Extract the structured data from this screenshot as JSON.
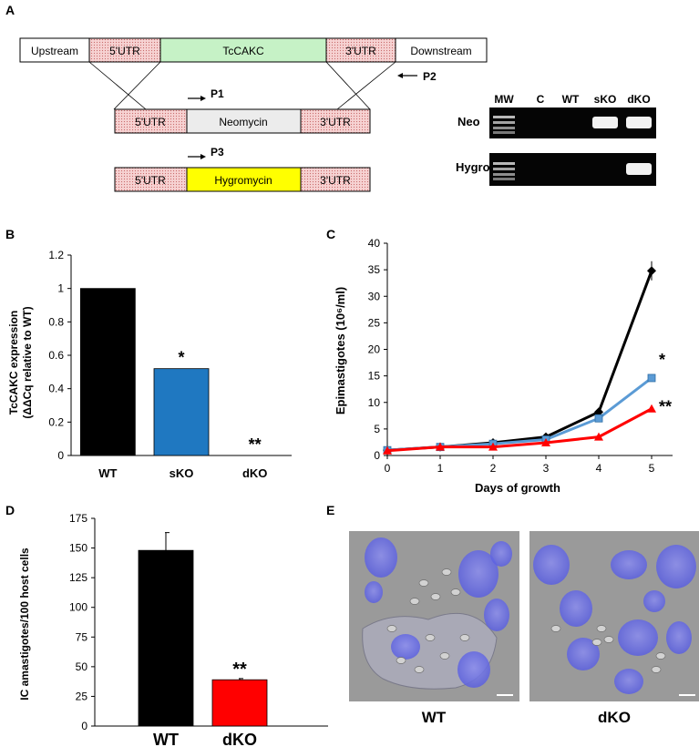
{
  "panel_labels": [
    "A",
    "B",
    "C",
    "D",
    "E"
  ],
  "gene_map": {
    "wt_locus": [
      "Upstream",
      "5'UTR",
      "TcCAKC",
      "3'UTR",
      "Downstream"
    ],
    "neo_cassette": [
      "5'UTR",
      "Neomycin",
      "3'UTR"
    ],
    "hygro_cassette": [
      "5'UTR",
      "Hygromycin",
      "3'UTR"
    ],
    "primers": [
      "P1",
      "P2",
      "P3"
    ],
    "colors": {
      "utr": "#f4c6c6",
      "gene": "#c6f2c6",
      "neo": "#ececec",
      "hygro": "#ffff00"
    }
  },
  "gel": {
    "lanes": [
      "MW",
      "C",
      "WT",
      "sKO",
      "dKO"
    ],
    "rows": [
      "Neo",
      "Hygro"
    ],
    "bands": {
      "Neo": [
        true,
        false,
        false,
        true,
        true
      ],
      "Hygro": [
        true,
        false,
        false,
        false,
        true
      ]
    }
  },
  "images": {
    "labels": [
      "WT",
      "dKO"
    ]
  },
  "chart_data": [
    {
      "type": "bar",
      "panel": "B",
      "categories": [
        "WT",
        "sKO",
        "dKO"
      ],
      "values": [
        1.0,
        0.52,
        0.0
      ],
      "colors": [
        "#000000",
        "#1f78c1",
        "#ff0000"
      ],
      "significance": [
        "",
        "*",
        "**"
      ],
      "ylabel_lines": [
        "TcCAKC expression",
        "(ΔΔCq relative to WT)"
      ],
      "yticks": [
        "0",
        "0.2",
        "0.4",
        "0.6",
        "0.8",
        "1",
        "1.2"
      ],
      "ylim": [
        0,
        1.2
      ]
    },
    {
      "type": "line",
      "panel": "C",
      "x": [
        0,
        1,
        2,
        3,
        4,
        5
      ],
      "series": [
        {
          "values": [
            1.0,
            1.6,
            2.4,
            3.5,
            8.2,
            34.8
          ],
          "color": "#000000",
          "marker": "diamond",
          "error": [
            0.2,
            0.2,
            0.2,
            0.2,
            0.3,
            1.8
          ]
        },
        {
          "values": [
            1.0,
            1.6,
            2.2,
            3.0,
            7.0,
            14.6
          ],
          "color": "#5b9bd5",
          "marker": "square",
          "error": [
            0.2,
            0.2,
            0.2,
            0.2,
            0.3,
            0.7
          ]
        },
        {
          "values": [
            0.9,
            1.6,
            1.6,
            2.4,
            3.5,
            8.8
          ],
          "color": "#ff0000",
          "marker": "triangle",
          "error": [
            0.1,
            0.1,
            0.1,
            0.1,
            0.2,
            0.4
          ]
        }
      ],
      "significance": [
        "",
        "*",
        "**"
      ],
      "xlabel": "Days of growth",
      "ylabel": "Epimastigotes (10⁶/ml)",
      "xticks": [
        "0",
        "1",
        "2",
        "3",
        "4",
        "5"
      ],
      "yticks": [
        "0",
        "5",
        "10",
        "15",
        "20",
        "25",
        "30",
        "35",
        "40"
      ],
      "ylim": [
        0,
        40
      ]
    },
    {
      "type": "bar",
      "panel": "D",
      "categories": [
        "WT",
        "dKO"
      ],
      "values": [
        148,
        39
      ],
      "errors": [
        15,
        1
      ],
      "colors": [
        "#000000",
        "#ff0000"
      ],
      "significance": [
        "",
        "**"
      ],
      "ylabel": "IC amastigotes/100  host cells",
      "yticks": [
        "0",
        "25",
        "50",
        "75",
        "100",
        "125",
        "150",
        "175"
      ],
      "ylim": [
        0,
        175
      ]
    }
  ]
}
